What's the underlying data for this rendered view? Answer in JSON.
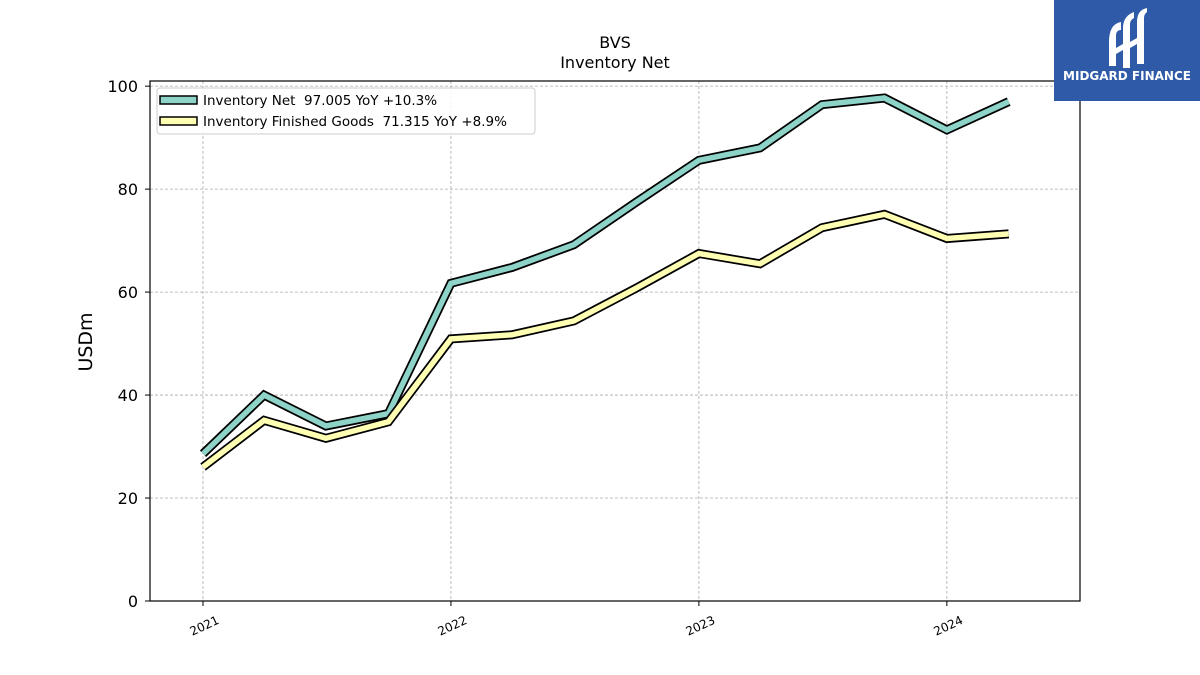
{
  "logo": {
    "name": "MIDGARD FINANCE",
    "color": "#2f5aa8"
  },
  "chart_data": {
    "type": "line",
    "title": "BVS",
    "subtitle": "Inventory Net",
    "xlabel": "",
    "ylabel": "USDm",
    "ylim": [
      0,
      101
    ],
    "yticks": [
      0,
      20,
      40,
      60,
      80,
      100
    ],
    "xlim": [
      "2020-10-15",
      "2024-07-15"
    ],
    "xticks": [
      "2021",
      "2022",
      "2023",
      "2024"
    ],
    "grid": true,
    "legend_position": "top-left",
    "x": [
      "2021-01-01",
      "2021-04-01",
      "2021-07-01",
      "2021-10-01",
      "2022-01-01",
      "2022-04-01",
      "2022-07-01",
      "2022-10-01",
      "2023-01-01",
      "2023-04-01",
      "2023-07-01",
      "2023-10-01",
      "2024-01-01",
      "2024-04-01"
    ],
    "series": [
      {
        "name": "Inventory Net",
        "legend": "Inventory Net  97.005 YoY +10.3%",
        "color": "#8dd3c7",
        "values": [
          28.6,
          40.0,
          34.0,
          36.4,
          61.7,
          64.8,
          69.2,
          77.5,
          85.6,
          88.0,
          96.4,
          97.7,
          91.5,
          97.0
        ]
      },
      {
        "name": "Inventory Finished Goods",
        "legend": "Inventory Finished Goods  71.315 YoY +8.9%",
        "color": "#ffffb3",
        "values": [
          26.0,
          35.1,
          31.6,
          34.8,
          50.9,
          51.7,
          54.4,
          60.8,
          67.5,
          65.5,
          72.5,
          75.1,
          70.4,
          71.3
        ]
      }
    ]
  }
}
